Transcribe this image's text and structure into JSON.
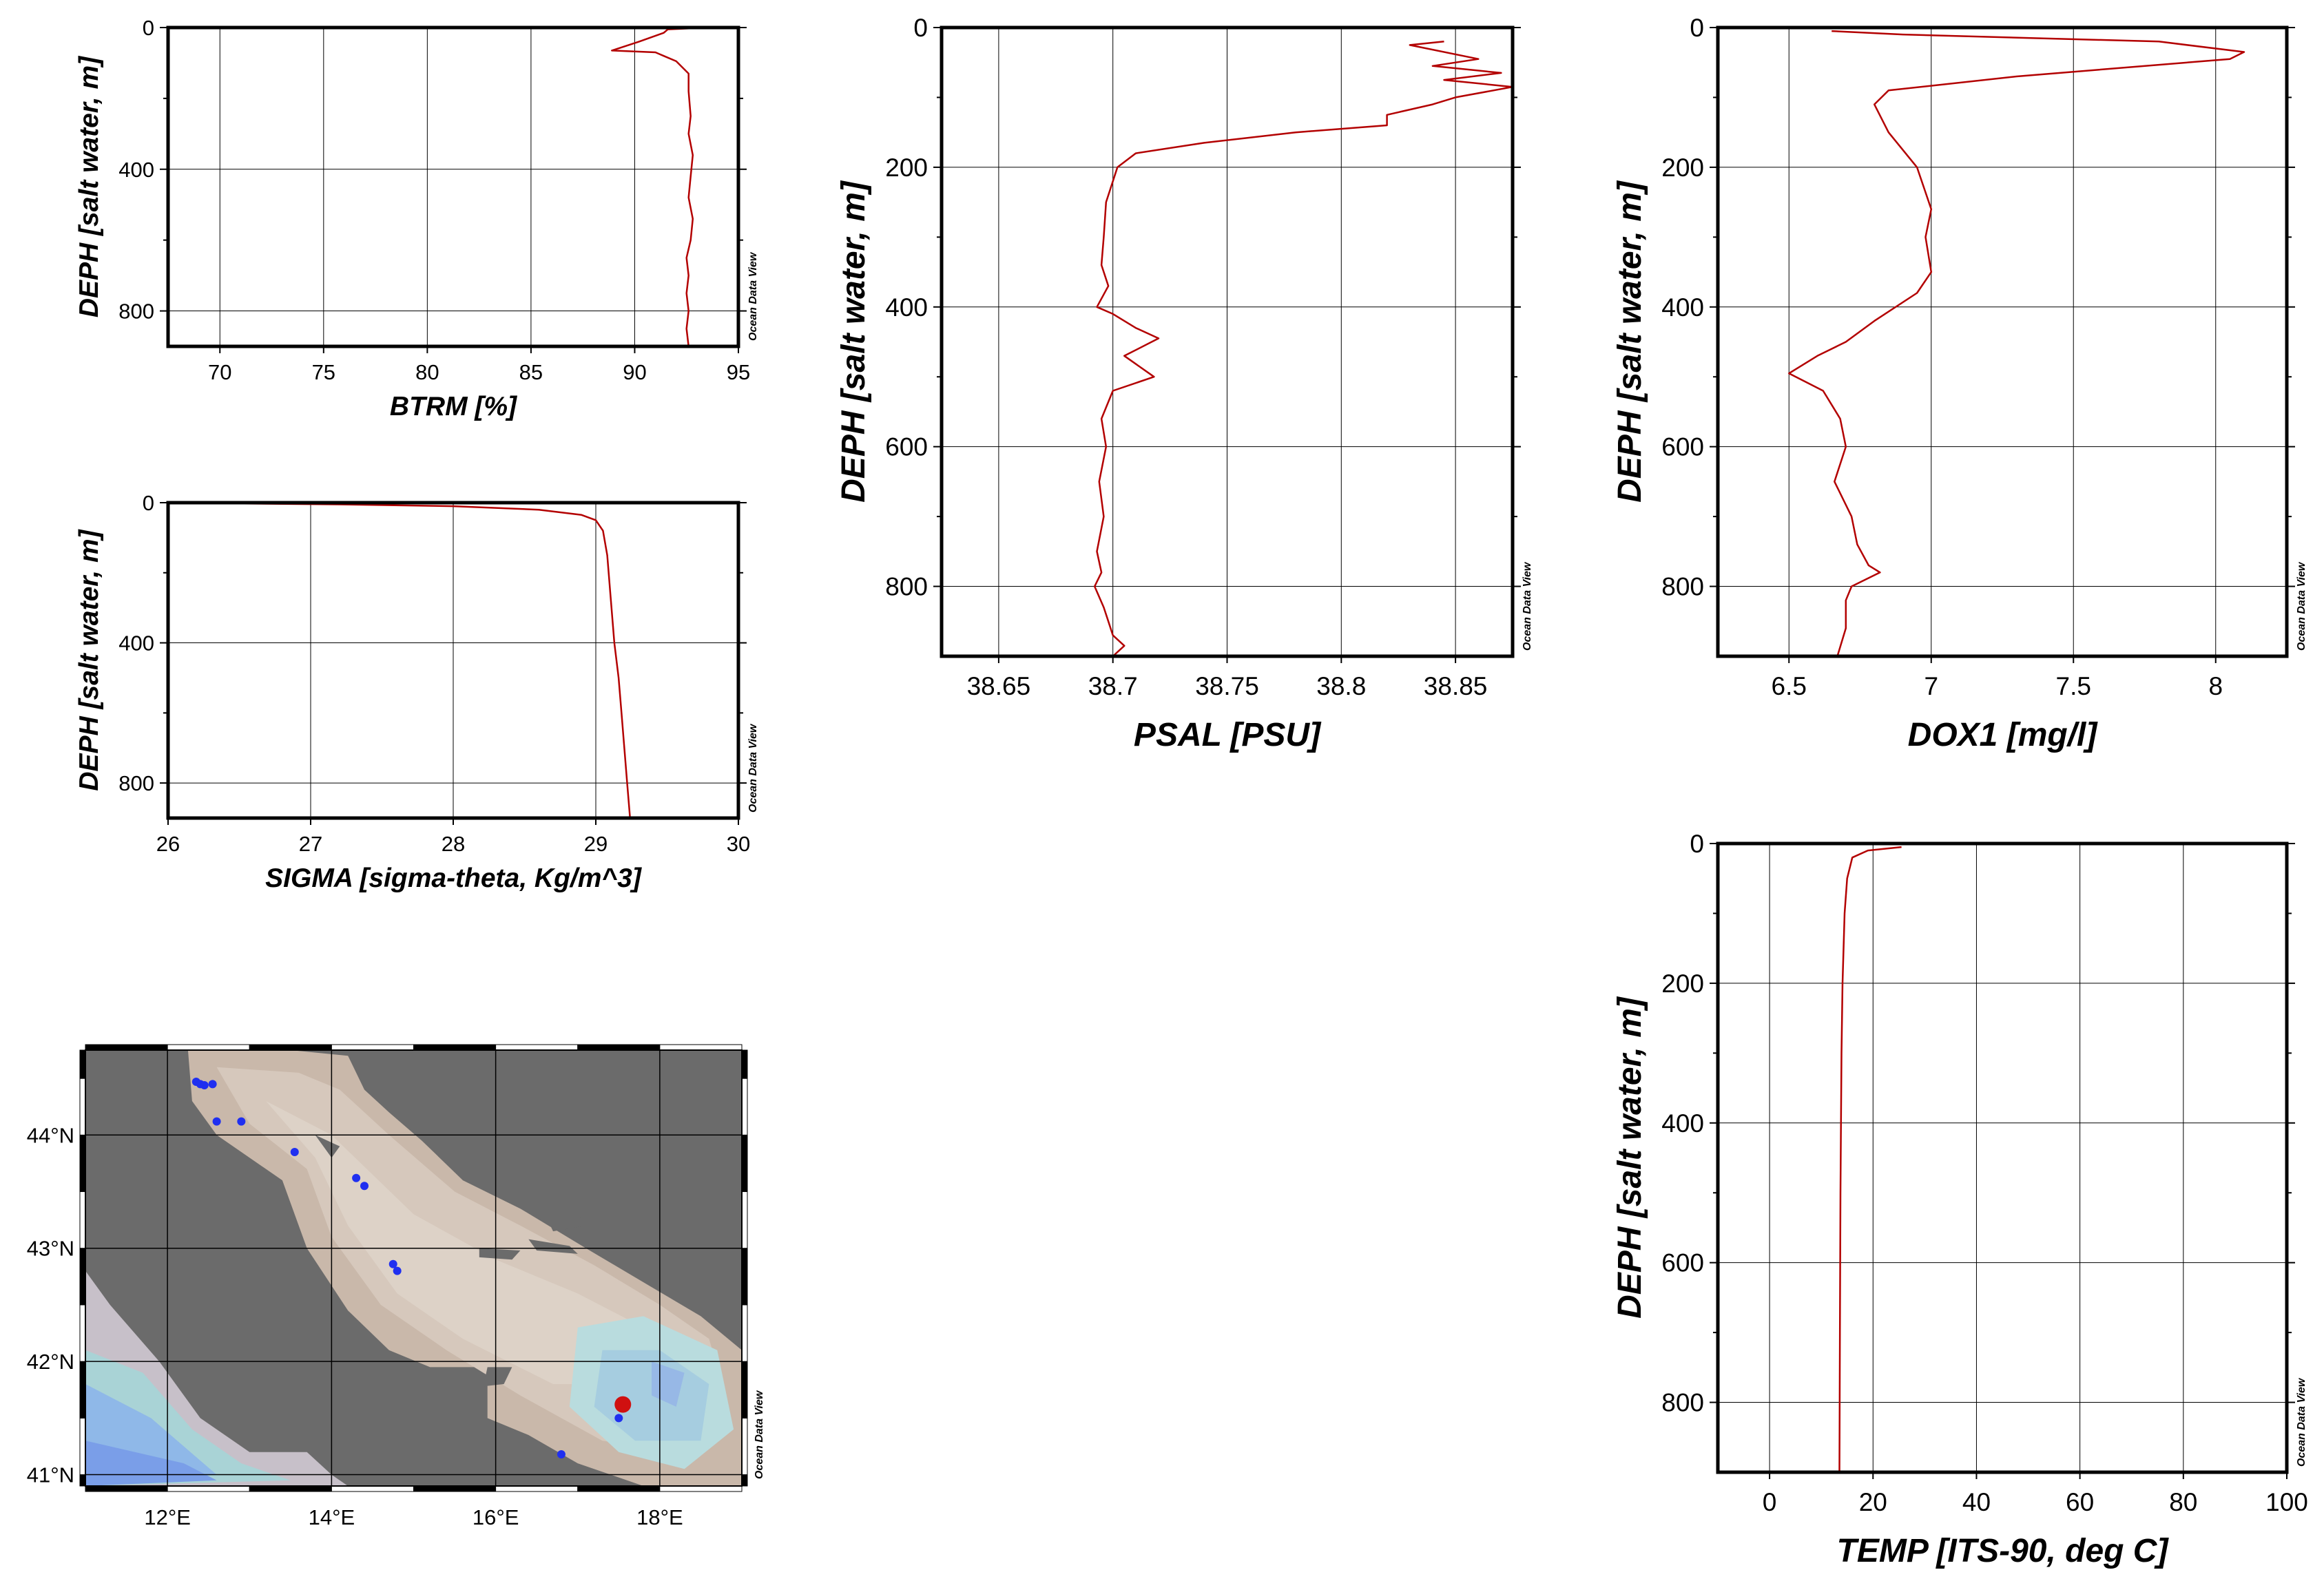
{
  "watermark": "Ocean Data View",
  "colors": {
    "profile": "#b30000",
    "land": "#6b6b6b",
    "station": "#1f2ff0",
    "current": "#d01010"
  },
  "chart_data": [
    {
      "id": "btrm",
      "type": "line",
      "xlabel": "BTRM [%]",
      "ylabel": "DEPH [salt water, m]",
      "xlim": [
        67.5,
        95
      ],
      "ylim": [
        900,
        0
      ],
      "xticks": [
        "70",
        "75",
        "80",
        "85",
        "90",
        "95"
      ],
      "yticks": [
        "0",
        "400",
        "800"
      ],
      "series": [
        {
          "x": [
            92.8,
            91.6,
            91.4,
            90.2,
            88.9,
            91.0,
            91.2,
            91.4,
            92.0,
            92.6,
            92.6,
            92.7,
            92.6,
            92.8,
            92.7,
            92.6,
            92.8,
            92.7,
            92.5,
            92.6,
            92.5,
            92.6,
            92.5,
            92.6
          ],
          "y": [
            2,
            5,
            15,
            40,
            65,
            70,
            75,
            80,
            95,
            130,
            180,
            250,
            300,
            360,
            420,
            480,
            540,
            600,
            650,
            700,
            750,
            800,
            850,
            900
          ]
        }
      ]
    },
    {
      "id": "sigma",
      "type": "line",
      "xlabel": "SIGMA [sigma-theta, Kg/m^3]",
      "ylabel": "DEPH [salt water, m]",
      "xlim": [
        26,
        30
      ],
      "ylim": [
        900,
        0
      ],
      "xticks": [
        "26",
        "27",
        "28",
        "29",
        "30"
      ],
      "yticks": [
        "0",
        "400",
        "800"
      ],
      "series": [
        {
          "x": [
            26.4,
            27.2,
            28.0,
            28.6,
            28.9,
            29.0,
            29.05,
            29.08,
            29.1,
            29.13,
            29.16,
            29.18,
            29.2,
            29.22,
            29.24
          ],
          "y": [
            2,
            5,
            10,
            20,
            35,
            50,
            80,
            150,
            250,
            400,
            500,
            600,
            700,
            800,
            900
          ]
        }
      ]
    },
    {
      "id": "psal",
      "type": "line",
      "xlabel": "PSAL [PSU]",
      "ylabel": "DEPH [salt water, m]",
      "xlim": [
        38.625,
        38.875
      ],
      "ylim": [
        900,
        0
      ],
      "xticks": [
        "38.65",
        "38.7",
        "38.75",
        "38.8",
        "38.85"
      ],
      "yticks": [
        "0",
        "200",
        "400",
        "600",
        "800"
      ],
      "series": [
        {
          "x": [
            38.845,
            38.83,
            38.86,
            38.84,
            38.87,
            38.845,
            38.875,
            38.85,
            38.84,
            38.82,
            38.82,
            38.78,
            38.74,
            38.71,
            38.702,
            38.697,
            38.696,
            38.695,
            38.698,
            38.693,
            38.7,
            38.71,
            38.72,
            38.705,
            38.718,
            38.7,
            38.695,
            38.697,
            38.694,
            38.696,
            38.693,
            38.695,
            38.692,
            38.696,
            38.698,
            38.7,
            38.705,
            38.7
          ],
          "y": [
            20,
            25,
            45,
            55,
            65,
            75,
            85,
            100,
            110,
            125,
            140,
            150,
            165,
            180,
            200,
            250,
            300,
            340,
            370,
            400,
            410,
            430,
            445,
            470,
            500,
            520,
            560,
            600,
            650,
            700,
            750,
            780,
            800,
            830,
            850,
            870,
            885,
            900
          ]
        }
      ]
    },
    {
      "id": "dox1",
      "type": "line",
      "xlabel": "DOX1 [mg/l]",
      "ylabel": "DEPH [salt water, m]",
      "xlim": [
        6.25,
        8.25
      ],
      "ylim": [
        900,
        0
      ],
      "xticks": [
        "6.5",
        "7",
        "7.5",
        "8"
      ],
      "yticks": [
        "0",
        "200",
        "400",
        "600",
        "800"
      ],
      "series": [
        {
          "x": [
            6.65,
            6.9,
            7.8,
            8.1,
            8.05,
            7.3,
            6.85,
            6.8,
            6.85,
            6.95,
            7.0,
            6.98,
            7.0,
            6.95,
            6.8,
            6.7,
            6.6,
            6.5,
            6.62,
            6.68,
            6.7,
            6.66,
            6.72,
            6.74,
            6.78,
            6.82,
            6.72,
            6.7,
            6.7,
            6.67
          ],
          "y": [
            5,
            10,
            20,
            35,
            45,
            70,
            90,
            110,
            150,
            200,
            260,
            300,
            350,
            380,
            420,
            450,
            470,
            495,
            520,
            560,
            600,
            650,
            700,
            740,
            770,
            780,
            800,
            820,
            860,
            900
          ]
        }
      ]
    },
    {
      "id": "temp",
      "type": "line",
      "xlabel": "TEMP [ITS-90, deg C]",
      "ylabel": "DEPH [salt water, m]",
      "xlim": [
        -10,
        100
      ],
      "ylim": [
        900,
        0
      ],
      "xticks": [
        "0",
        "20",
        "40",
        "60",
        "80",
        "100"
      ],
      "yticks": [
        "0",
        "200",
        "400",
        "600",
        "800"
      ],
      "series": [
        {
          "x": [
            25.5,
            19.0,
            16.0,
            15.0,
            14.5,
            14.1,
            13.9,
            13.7,
            13.6,
            13.5
          ],
          "y": [
            5,
            10,
            20,
            50,
            100,
            200,
            300,
            500,
            700,
            900
          ]
        }
      ]
    },
    {
      "id": "map",
      "type": "map",
      "lonlim": [
        11,
        19
      ],
      "latlim": [
        40.9,
        44.75
      ],
      "xticks": [
        "12°E",
        "14°E",
        "16°E",
        "18°E"
      ],
      "yticks": [
        "41°N",
        "42°N",
        "43°N",
        "44°N"
      ],
      "stations": [
        [
          12.35,
          44.47
        ],
        [
          12.4,
          44.45
        ],
        [
          12.45,
          44.44
        ],
        [
          12.55,
          44.45
        ],
        [
          12.6,
          44.12
        ],
        [
          12.9,
          44.12
        ],
        [
          13.55,
          43.85
        ],
        [
          14.3,
          43.62
        ],
        [
          14.4,
          43.55
        ],
        [
          14.75,
          42.86
        ],
        [
          14.8,
          42.8
        ],
        [
          17.5,
          41.5
        ],
        [
          16.8,
          41.18
        ]
      ],
      "current_station": [
        17.55,
        41.62
      ]
    }
  ]
}
